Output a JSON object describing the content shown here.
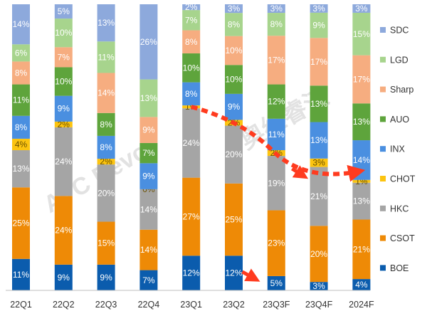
{
  "chart_data": {
    "type": "bar",
    "stacked": true,
    "percent": true,
    "categories": [
      "22Q1",
      "22Q2",
      "22Q3",
      "22Q4",
      "23Q1",
      "23Q2",
      "23Q3F",
      "23Q4F",
      "2024F"
    ],
    "series": [
      {
        "name": "BOE",
        "color": "#0b5cad",
        "values": [
          11,
          9,
          9,
          7,
          12,
          12,
          5,
          3,
          4
        ]
      },
      {
        "name": "CSOT",
        "color": "#ee8a06",
        "values": [
          25,
          24,
          15,
          14,
          27,
          25,
          23,
          20,
          21
        ]
      },
      {
        "name": "HKC",
        "color": "#a5a5a5",
        "values": [
          13,
          24,
          20,
          14,
          24,
          20,
          19,
          21,
          13
        ]
      },
      {
        "name": "CHOT",
        "color": "#fcc410",
        "values": [
          4,
          2,
          2,
          0,
          1,
          2,
          2,
          3,
          1
        ]
      },
      {
        "name": "INX",
        "color": "#4a8fe0",
        "values": [
          8,
          9,
          8,
          9,
          8,
          9,
          11,
          13,
          14
        ]
      },
      {
        "name": "AUO",
        "color": "#5ea43c",
        "values": [
          11,
          10,
          8,
          7,
          10,
          10,
          12,
          13,
          13
        ]
      },
      {
        "name": "Sharp",
        "color": "#f6ad80",
        "values": [
          8,
          7,
          14,
          9,
          8,
          10,
          17,
          17,
          17
        ]
      },
      {
        "name": "LGD",
        "color": "#a7d48d",
        "values": [
          6,
          10,
          11,
          13,
          7,
          8,
          8,
          9,
          15
        ]
      },
      {
        "name": "SDC",
        "color": "#8da9dc",
        "values": [
          14,
          5,
          13,
          26,
          2,
          3,
          3,
          3,
          3
        ]
      }
    ],
    "ylim": [
      0,
      100
    ],
    "legend_position": "right",
    "legend_order": [
      "SDC",
      "LGD",
      "Sharp",
      "AUO",
      "INX",
      "CHOT",
      "HKC",
      "CSOT",
      "BOE"
    ],
    "grid": false,
    "annotations": {
      "arrow_color": "#ff3b1f",
      "watermark_color": "#bfbfbf"
    }
  }
}
